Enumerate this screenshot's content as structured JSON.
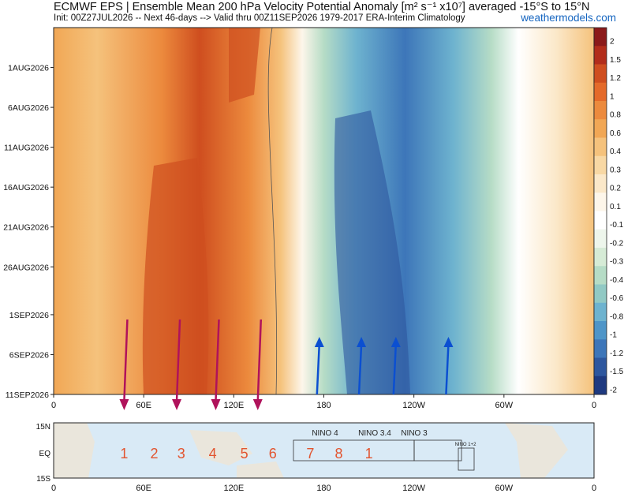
{
  "header": {
    "title": "ECMWF EPS | Ensemble Mean 200 hPa Velocity Potential Anomaly [m² s⁻¹ x10⁷] averaged -15°S to 15°N",
    "subtitle": "Init: 00Z27JUL2026 -- Next 46-days --> Valid thru 00Z11SEP2026 1979-2017 ERA-Interim Climatology",
    "site": "weathermodels.com"
  },
  "chart_data": [
    {
      "type": "heatmap",
      "title": "ECMWF EPS | Ensemble Mean 200 hPa Velocity Potential Anomaly [m² s⁻¹ x10⁷] averaged -15°S to 15°N",
      "x_ticks": [
        "0",
        "60E",
        "120E",
        "180",
        "120W",
        "60W",
        "0"
      ],
      "x_tick_lon": [
        0,
        60,
        120,
        180,
        240,
        300,
        360
      ],
      "y_ticks": [
        "1AUG2026",
        "6AUG2026",
        "11AUG2026",
        "16AUG2026",
        "21AUG2026",
        "26AUG2026",
        "1SEP2026",
        "6SEP2026",
        "11SEP2026"
      ],
      "y_tick_day": [
        5,
        10,
        15,
        20,
        25,
        30,
        36,
        41,
        46
      ],
      "ylim_days": [
        0,
        46
      ],
      "colorbar_levels": [
        "2",
        "1.5",
        "1.2",
        "1",
        "0.8",
        "0.6",
        "0.4",
        "0.3",
        "0.2",
        "0.1",
        "-0.1",
        "-0.2",
        "-0.3",
        "-0.4",
        "-0.6",
        "-0.8",
        "-1",
        "-1.2",
        "-1.5",
        "-2"
      ],
      "colorbar_colors": [
        "#8b1a1a",
        "#b22d1b",
        "#cf4e1f",
        "#e46a2a",
        "#ec8a3d",
        "#f1a755",
        "#f5c27c",
        "#f8d8a4",
        "#fbe8c9",
        "#fdf6ea",
        "#ffffff",
        "#eef6ec",
        "#d6ebd6",
        "#b6dcc6",
        "#91c9c4",
        "#6eb3cf",
        "#4e95c8",
        "#3d76b9",
        "#2e579e",
        "#1f3a80"
      ],
      "features": [
        {
          "name": "positive",
          "lon_start": 40,
          "lon_end": 150,
          "value": 1.0
        },
        {
          "name": "negative",
          "lon_start": 170,
          "lon_end": 300,
          "value": -1.2
        }
      ],
      "arrows_down_lon": [
        47,
        82,
        108,
        136
      ],
      "arrows_up_lon": [
        177,
        205,
        228,
        263
      ]
    },
    {
      "type": "map",
      "lat_ticks": [
        "15N",
        "EQ",
        "15S"
      ],
      "lon_ticks": [
        "0",
        "60E",
        "120E",
        "180",
        "120W",
        "60W",
        "0"
      ],
      "region_labels": [
        "NINO 4",
        "NINO 3.4",
        "NINO 3",
        "NINO 1+2"
      ],
      "phase_numbers": [
        "1",
        "2",
        "3",
        "4",
        "5",
        "6",
        "7",
        "8",
        "1"
      ],
      "phase_lon": [
        47,
        67,
        85,
        106,
        127,
        146,
        171,
        190,
        210
      ]
    }
  ]
}
